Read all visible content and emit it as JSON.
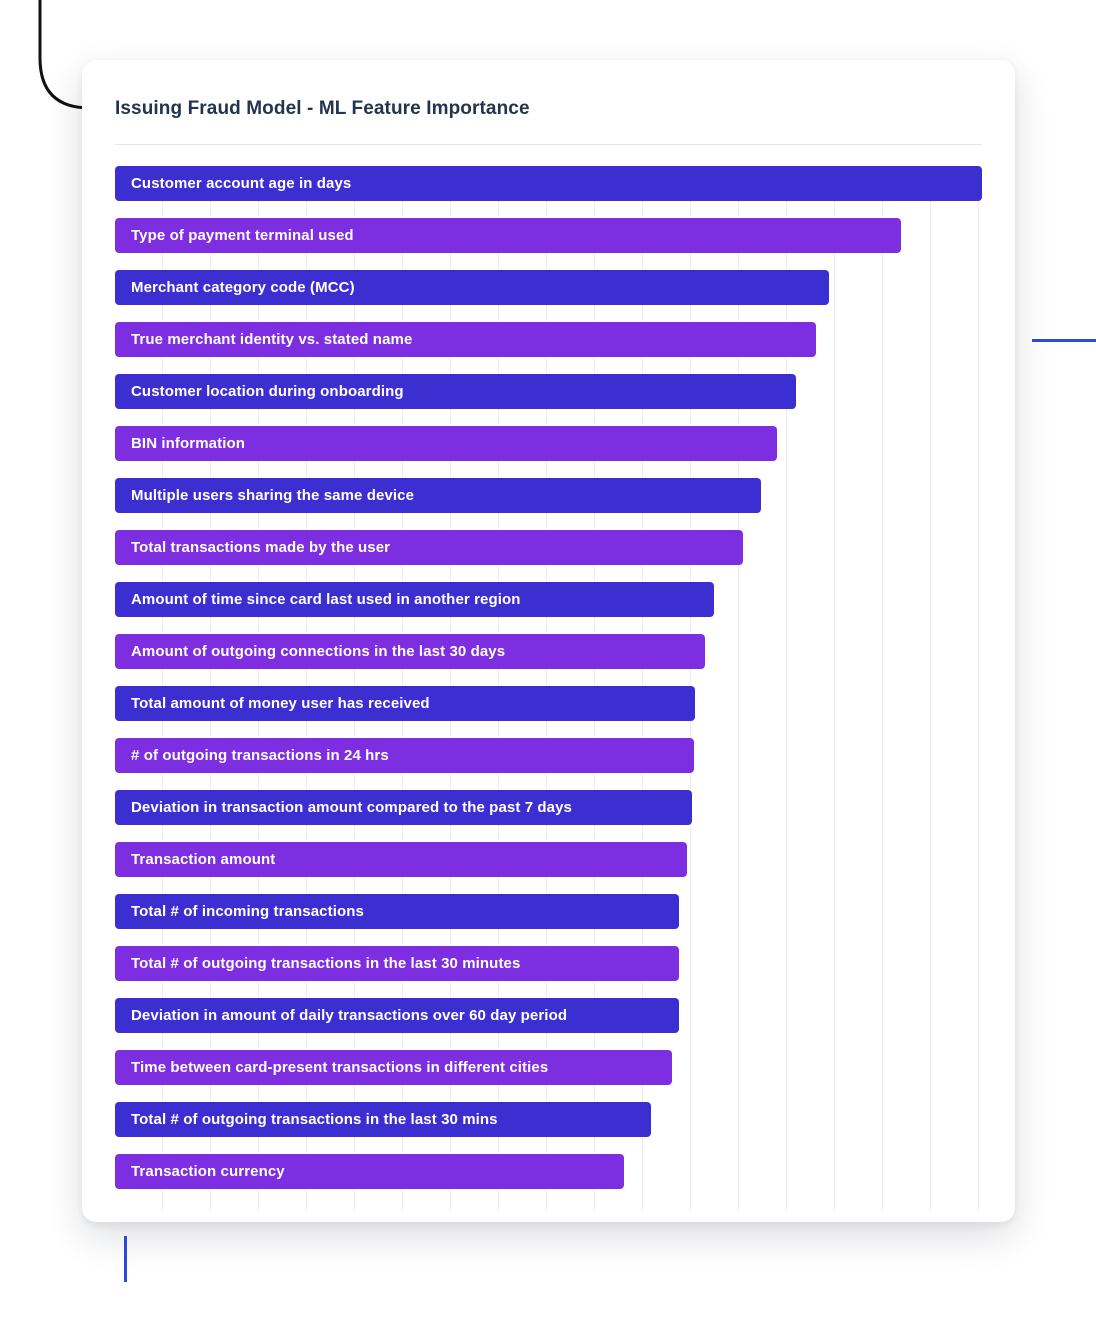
{
  "page": {
    "title": "Issuing Fraud Model - ML Feature Importance"
  },
  "colors": {
    "bar_blue": "#3b2fd1",
    "bar_purple": "#7d2ee0",
    "grid_line": "#eceef2",
    "divider": "#e5e7eb",
    "title_text": "#24344d",
    "edge_mark_blue": "#2b4bd7",
    "corner_mark_black": "#111111"
  },
  "chart_data": {
    "type": "bar",
    "orientation": "horizontal",
    "title": "Issuing Fraud Model - ML Feature Importance",
    "xlabel": "",
    "ylabel": "",
    "xlim": [
      0,
      100
    ],
    "grid": "vertical-only",
    "legend": "none",
    "bar_colors_alternate": [
      "#3b2fd1",
      "#7d2ee0"
    ],
    "categories": [
      "Customer account age in days",
      "Type of payment terminal used",
      "Merchant category code (MCC)",
      "True merchant identity vs. stated name",
      "Customer location during onboarding",
      "BIN information",
      "Multiple users sharing the same device",
      "Total transactions made by the user",
      "Amount of time since card last used in another region",
      "Amount of outgoing connections in the last 30 days",
      "Total amount of money user has received",
      "# of outgoing transactions in 24 hrs",
      "Deviation in transaction amount compared to the past 7 days",
      "Transaction amount",
      "Total # of incoming transactions",
      "Total # of outgoing transactions in the last 30 minutes",
      "Deviation in amount of daily transactions over 60 day period",
      "Time between card-present transactions in different cities",
      "Total # of outgoing transactions in the last 30 mins",
      "Transaction currency"
    ],
    "values": [
      100,
      90.7,
      82.4,
      80.8,
      78.6,
      76.4,
      74.5,
      72.4,
      69.1,
      68.0,
      66.9,
      66.8,
      66.5,
      66.0,
      65.1,
      65.1,
      65.1,
      64.3,
      61.8,
      58.7
    ]
  }
}
